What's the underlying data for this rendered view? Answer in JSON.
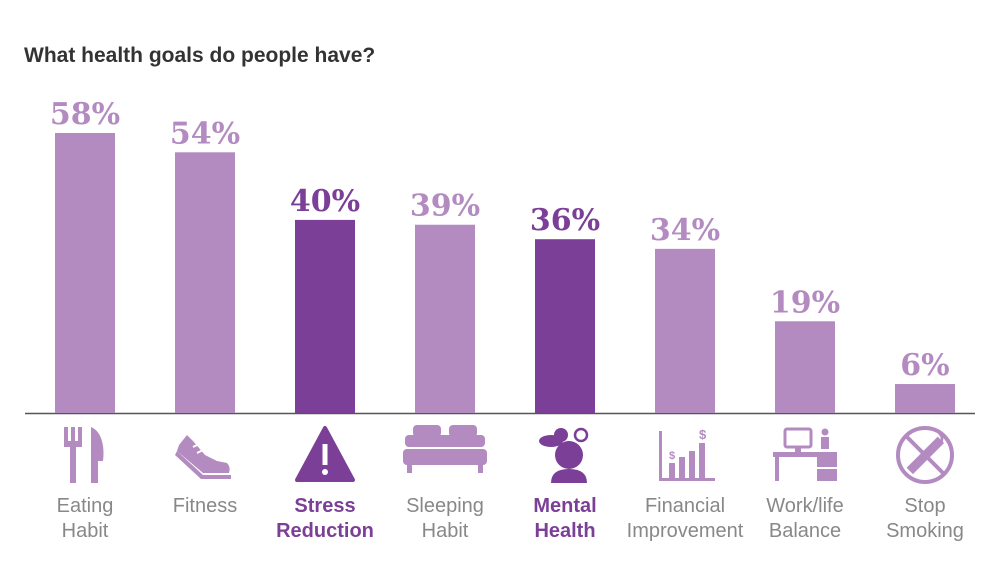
{
  "colors": {
    "normal": "#b38bc0",
    "highlight": "#7c3f98",
    "text_normal": "#888888",
    "text_highlight": "#7c3f98",
    "icon_normal": "#b38bc0",
    "icon_highlight": "#7c3f98",
    "axis": "#555555",
    "title": "#333333"
  },
  "chart_data": {
    "type": "bar",
    "title": "What health goals do people have?",
    "xlabel": "",
    "ylabel": "",
    "ylim": [
      0,
      60
    ],
    "grid": false,
    "categories": [
      {
        "lines": [
          "Eating",
          "Habit"
        ],
        "value": 58,
        "label": "58%",
        "highlight": false,
        "icon": "fork-knife-icon"
      },
      {
        "lines": [
          "Fitness"
        ],
        "value": 54,
        "label": "54%",
        "highlight": false,
        "icon": "sneaker-icon"
      },
      {
        "lines": [
          "Stress",
          "Reduction"
        ],
        "value": 40,
        "label": "40%",
        "highlight": true,
        "icon": "warning-icon"
      },
      {
        "lines": [
          "Sleeping",
          "Habit"
        ],
        "value": 39,
        "label": "39%",
        "highlight": false,
        "icon": "bed-icon"
      },
      {
        "lines": [
          "Mental",
          "Health"
        ],
        "value": 36,
        "label": "36%",
        "highlight": true,
        "icon": "person-weather-icon"
      },
      {
        "lines": [
          "Financial",
          "Improvement"
        ],
        "value": 34,
        "label": "34%",
        "highlight": false,
        "icon": "bar-graph-dollar-icon"
      },
      {
        "lines": [
          "Work/life",
          "Balance"
        ],
        "value": 19,
        "label": "19%",
        "highlight": false,
        "icon": "desk-computer-icon"
      },
      {
        "lines": [
          "Stop",
          "Smoking"
        ],
        "value": 6,
        "label": "6%",
        "highlight": false,
        "icon": "no-smoking-icon"
      }
    ]
  }
}
